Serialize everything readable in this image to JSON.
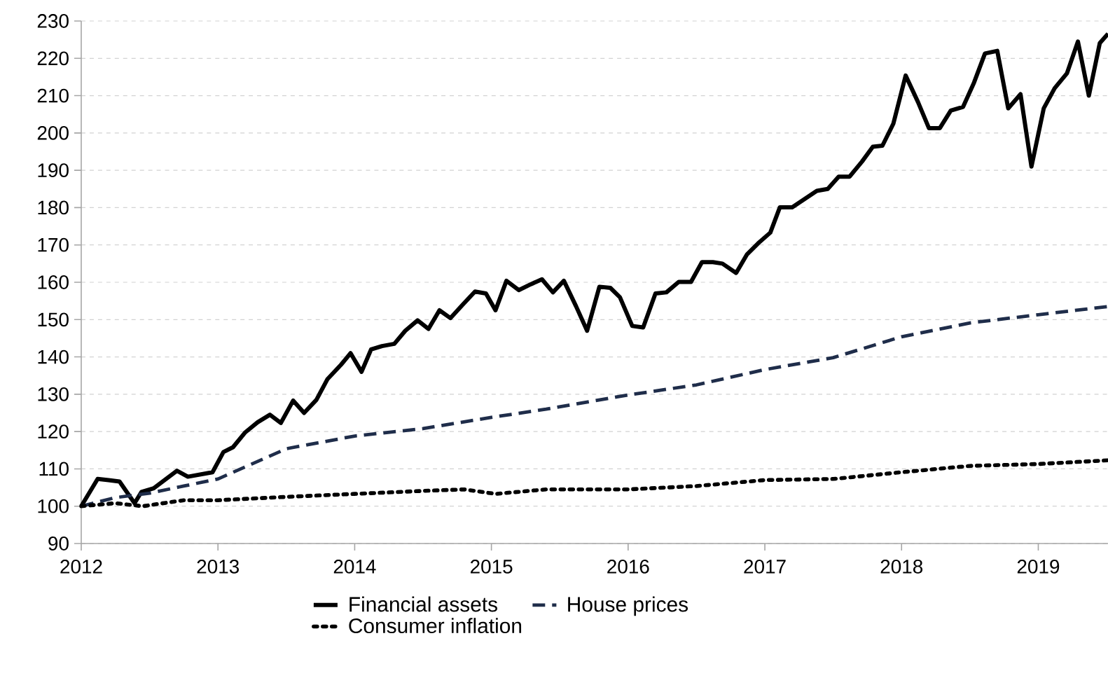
{
  "chart_data": {
    "type": "line",
    "xlim": [
      2012,
      2019.51
    ],
    "xticks": [
      2012,
      2013,
      2014,
      2015,
      2016,
      2017,
      2018,
      2019
    ],
    "ylim": [
      90,
      230
    ],
    "yticks": [
      90,
      100,
      110,
      120,
      130,
      140,
      150,
      160,
      170,
      180,
      190,
      200,
      210,
      220,
      230
    ],
    "grid": "y",
    "legend": "bottom",
    "marker": "none",
    "series": [
      {
        "name": "Financial assets",
        "color": "#000000",
        "line_style": "solid",
        "x": [
          2012.0,
          2012.12,
          2012.2,
          2012.28,
          2012.39,
          2012.44,
          2012.53,
          2012.62,
          2012.7,
          2012.78,
          2012.87,
          2012.96,
          2013.04,
          2013.11,
          2013.2,
          2013.29,
          2013.38,
          2013.46,
          2013.55,
          2013.63,
          2013.72,
          2013.8,
          2013.9,
          2013.97,
          2014.05,
          2014.12,
          2014.2,
          2014.29,
          2014.37,
          2014.46,
          2014.54,
          2014.62,
          2014.7,
          2014.79,
          2014.88,
          2014.96,
          2015.03,
          2015.11,
          2015.2,
          2015.29,
          2015.37,
          2015.45,
          2015.53,
          2015.62,
          2015.7,
          2015.79,
          2015.87,
          2015.94,
          2016.03,
          2016.11,
          2016.2,
          2016.28,
          2016.37,
          2016.46,
          2016.54,
          2016.62,
          2016.69,
          2016.79,
          2016.87,
          2016.95,
          2017.04,
          2017.11,
          2017.2,
          2017.29,
          2017.38,
          2017.46,
          2017.54,
          2017.62,
          2017.71,
          2017.79,
          2017.86,
          2017.94,
          2018.03,
          2018.12,
          2018.2,
          2018.28,
          2018.36,
          2018.45,
          2018.53,
          2018.61,
          2018.7,
          2018.78,
          2018.87,
          2018.95,
          2019.04,
          2019.12,
          2019.21,
          2019.29,
          2019.37,
          2019.45,
          2019.51
        ],
        "values": [
          100,
          107.3,
          107,
          106.6,
          100.8,
          103.8,
          104.8,
          107.3,
          109.5,
          107.9,
          108.5,
          109.1,
          114.5,
          115.8,
          119.8,
          122.5,
          124.5,
          122.3,
          128.3,
          125,
          128.5,
          134,
          137.9,
          141,
          136,
          142,
          142.9,
          143.5,
          147,
          149.8,
          147.5,
          152.5,
          150.4,
          154,
          157.5,
          157,
          152.5,
          160.4,
          157.9,
          159.5,
          160.8,
          157.3,
          160.4,
          153.5,
          147,
          158.8,
          158.5,
          156,
          148.3,
          147.9,
          157,
          157.3,
          160.1,
          160.1,
          165.4,
          165.4,
          165,
          162.5,
          167.5,
          170.4,
          173.3,
          180.1,
          180.1,
          182.3,
          184.5,
          185,
          188.3,
          188.3,
          192.3,
          196.3,
          196.6,
          202.5,
          215.4,
          208.3,
          201.3,
          201.3,
          206,
          207,
          213.5,
          221.3,
          222,
          206.6,
          210.4,
          191,
          206.6,
          212,
          216,
          224.5,
          210,
          224.1,
          226.6
        ]
      },
      {
        "name": "House prices",
        "color": "#1f2d4a",
        "line_style": "dashed",
        "x": [
          2012.0,
          2012.25,
          2012.5,
          2012.75,
          2013.0,
          2013.5,
          2014.0,
          2014.5,
          2015.0,
          2015.4,
          2016.0,
          2016.5,
          2017.0,
          2017.5,
          2018.0,
          2018.5,
          2019.0,
          2019.51
        ],
        "values": [
          100,
          102.3,
          103.5,
          105.4,
          107.3,
          115.4,
          118.8,
          120.8,
          123.8,
          126,
          129.8,
          132.5,
          136.6,
          139.8,
          145.4,
          149.1,
          151.3,
          153.5
        ]
      },
      {
        "name": "Consumer inflation",
        "color": "#000000",
        "line_style": "dotted",
        "x": [
          2012.0,
          2012.25,
          2012.45,
          2012.75,
          2013.0,
          2013.5,
          2014.0,
          2014.5,
          2014.8,
          2015.03,
          2015.4,
          2016.0,
          2016.5,
          2017.0,
          2017.5,
          2018.0,
          2018.5,
          2019.0,
          2019.51
        ],
        "values": [
          100,
          100.8,
          100,
          101.6,
          101.6,
          102.5,
          103.3,
          104.1,
          104.5,
          103.3,
          104.5,
          104.5,
          105.4,
          107,
          107.3,
          109.1,
          110.8,
          111.3,
          112.3
        ]
      }
    ]
  }
}
